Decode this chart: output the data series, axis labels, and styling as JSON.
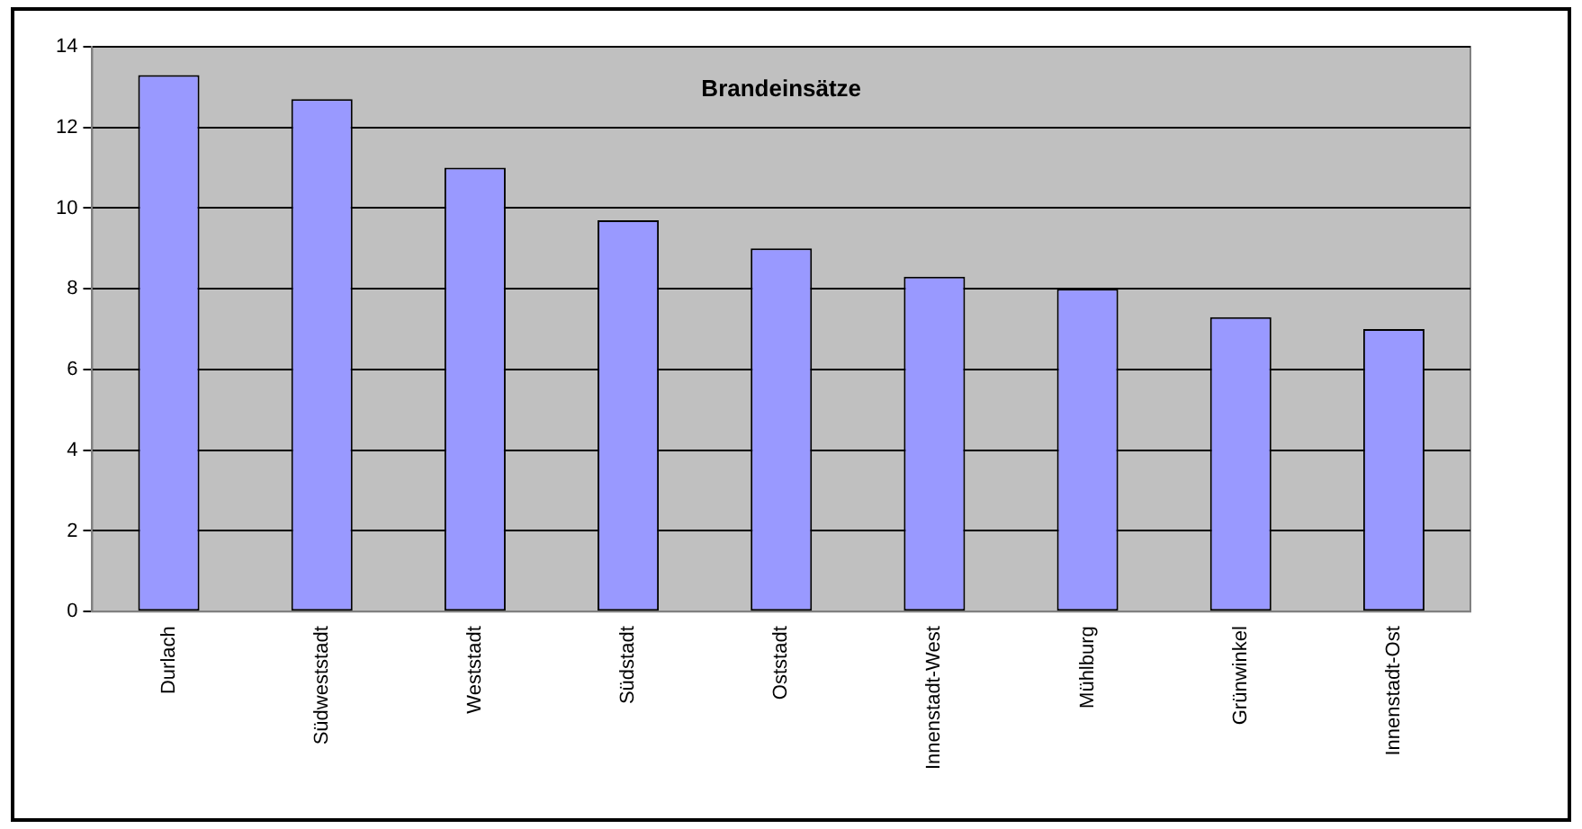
{
  "chart_data": {
    "type": "bar",
    "title": "Brandeinsätze",
    "categories": [
      "Durlach",
      "Südweststadt",
      "Weststadt",
      "Südstadt",
      "Oststadt",
      "Innenstadt-West",
      "Mühlburg",
      "Grünwinkel",
      "Innenstadt-Ost"
    ],
    "values": [
      13.3,
      12.7,
      11,
      9.7,
      9,
      8.3,
      8,
      7.3,
      7
    ],
    "color": "#9999ff",
    "ylim": [
      0,
      14
    ],
    "yticks": [
      0,
      2,
      4,
      6,
      8,
      10,
      12,
      14
    ],
    "grid": "y",
    "legend": false
  }
}
